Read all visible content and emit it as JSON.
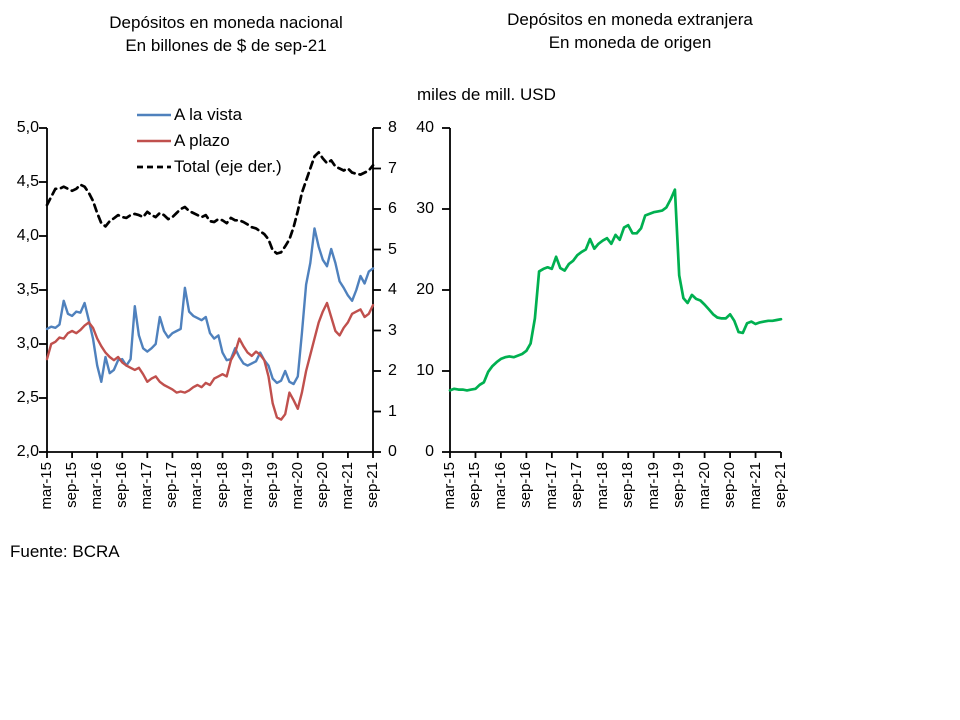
{
  "source_note": "Fuente: BCRA",
  "chart_data": [
    {
      "type": "line",
      "title": "Depósitos en moneda nacional",
      "subtitle": "En billones de $ de sep-21",
      "legend_position": "top",
      "x_tick_every": 6,
      "x_tick_labels": [
        "mar-15",
        "sep-15",
        "mar-16",
        "sep-16",
        "mar-17",
        "sep-17",
        "mar-18",
        "sep-18",
        "mar-19",
        "sep-19",
        "mar-20",
        "sep-20",
        "mar-21",
        "sep-21"
      ],
      "axes": {
        "left": {
          "tick_labels": [
            "5,0",
            "4,5",
            "4,0",
            "3,5",
            "3,0",
            "2,5",
            "2,0"
          ],
          "min": 2.0,
          "max": 5.0
        },
        "right": {
          "tick_labels": [
            "8",
            "7",
            "6",
            "5",
            "4",
            "3",
            "2",
            "1",
            "0"
          ],
          "min": 0,
          "max": 8
        }
      },
      "series": [
        {
          "name": "A la vista",
          "color": "#4f81bd",
          "dash": "solid",
          "axis": "left",
          "values": [
            3.14,
            3.16,
            3.15,
            3.18,
            3.4,
            3.28,
            3.26,
            3.3,
            3.29,
            3.38,
            3.22,
            3.05,
            2.8,
            2.65,
            2.88,
            2.73,
            2.76,
            2.85,
            2.86,
            2.8,
            2.86,
            3.35,
            3.08,
            2.96,
            2.93,
            2.96,
            3.0,
            3.25,
            3.12,
            3.06,
            3.1,
            3.12,
            3.14,
            3.52,
            3.3,
            3.26,
            3.24,
            3.22,
            3.25,
            3.1,
            3.05,
            3.08,
            2.92,
            2.85,
            2.86,
            2.96,
            2.88,
            2.82,
            2.8,
            2.82,
            2.84,
            2.92,
            2.85,
            2.8,
            2.68,
            2.64,
            2.66,
            2.75,
            2.65,
            2.63,
            2.7,
            3.1,
            3.55,
            3.75,
            4.07,
            3.9,
            3.78,
            3.72,
            3.88,
            3.75,
            3.58,
            3.52,
            3.45,
            3.4,
            3.5,
            3.63,
            3.56,
            3.67,
            3.7
          ]
        },
        {
          "name": "A plazo",
          "color": "#c0504d",
          "dash": "solid",
          "axis": "left",
          "values": [
            2.86,
            3.0,
            3.02,
            3.06,
            3.05,
            3.1,
            3.12,
            3.1,
            3.13,
            3.17,
            3.2,
            3.15,
            3.05,
            2.98,
            2.92,
            2.88,
            2.85,
            2.88,
            2.83,
            2.8,
            2.78,
            2.76,
            2.78,
            2.72,
            2.65,
            2.68,
            2.7,
            2.65,
            2.62,
            2.6,
            2.58,
            2.55,
            2.56,
            2.55,
            2.57,
            2.6,
            2.62,
            2.6,
            2.64,
            2.62,
            2.68,
            2.7,
            2.72,
            2.7,
            2.85,
            2.92,
            3.05,
            2.98,
            2.92,
            2.89,
            2.93,
            2.9,
            2.85,
            2.7,
            2.45,
            2.32,
            2.3,
            2.35,
            2.55,
            2.48,
            2.4,
            2.55,
            2.75,
            2.9,
            3.05,
            3.2,
            3.3,
            3.38,
            3.25,
            3.12,
            3.08,
            3.15,
            3.2,
            3.28,
            3.3,
            3.32,
            3.25,
            3.28,
            3.36
          ]
        },
        {
          "name": "Total (eje der.)",
          "color": "#000000",
          "dash": "dashed",
          "axis": "right",
          "values": [
            6.1,
            6.3,
            6.5,
            6.5,
            6.55,
            6.5,
            6.45,
            6.5,
            6.6,
            6.55,
            6.4,
            6.2,
            5.9,
            5.65,
            5.57,
            5.7,
            5.77,
            5.85,
            5.8,
            5.78,
            5.85,
            5.88,
            5.85,
            5.8,
            5.93,
            5.85,
            5.8,
            5.9,
            5.85,
            5.75,
            5.8,
            5.9,
            6.0,
            6.05,
            5.95,
            5.9,
            5.85,
            5.8,
            5.85,
            5.7,
            5.68,
            5.75,
            5.72,
            5.65,
            5.78,
            5.72,
            5.72,
            5.68,
            5.62,
            5.55,
            5.52,
            5.45,
            5.38,
            5.25,
            4.98,
            4.9,
            4.93,
            5.08,
            5.25,
            5.55,
            5.95,
            6.4,
            6.7,
            7.0,
            7.3,
            7.4,
            7.25,
            7.13,
            7.2,
            7.05,
            7.0,
            6.95,
            7.0,
            6.9,
            6.87,
            6.85,
            6.9,
            6.95,
            7.08
          ]
        }
      ]
    },
    {
      "type": "line",
      "title": "Depósitos en moneda extranjera",
      "subtitle": "En moneda de origen",
      "unit_label": "miles de mill. USD",
      "x_tick_every": 6,
      "x_tick_labels": [
        "mar-15",
        "sep-15",
        "mar-16",
        "sep-16",
        "mar-17",
        "sep-17",
        "mar-18",
        "sep-18",
        "mar-19",
        "sep-19",
        "mar-20",
        "sep-20",
        "mar-21",
        "sep-21"
      ],
      "axes": {
        "left": {
          "tick_labels": [
            "40",
            "30",
            "20",
            "10",
            "0"
          ],
          "min": 0,
          "max": 40
        }
      },
      "series": [
        {
          "name": "Depósitos en moneda extranjera",
          "color": "#00b050",
          "dash": "solid",
          "axis": "left",
          "values": [
            7.6,
            7.8,
            7.7,
            7.7,
            7.6,
            7.7,
            7.8,
            8.3,
            8.6,
            9.9,
            10.6,
            11.1,
            11.5,
            11.7,
            11.8,
            11.7,
            11.9,
            12.1,
            12.5,
            13.4,
            16.5,
            22.3,
            22.6,
            22.8,
            22.6,
            24.1,
            22.7,
            22.4,
            23.2,
            23.6,
            24.3,
            24.7,
            25.0,
            26.3,
            25.1,
            25.7,
            26.1,
            26.4,
            25.7,
            26.8,
            26.2,
            27.7,
            28.0,
            27.0,
            27.0,
            27.6,
            29.2,
            29.4,
            29.6,
            29.7,
            29.8,
            30.2,
            31.2,
            32.4,
            21.8,
            19.0,
            18.4,
            19.4,
            18.9,
            18.7,
            18.2,
            17.6,
            17.0,
            16.6,
            16.5,
            16.5,
            17.0,
            16.2,
            14.8,
            14.7,
            15.9,
            16.1,
            15.8,
            16.0,
            16.1,
            16.2,
            16.2,
            16.3,
            16.4
          ]
        }
      ]
    }
  ]
}
